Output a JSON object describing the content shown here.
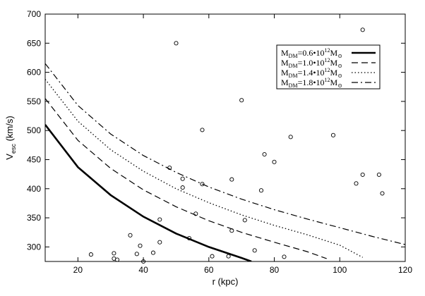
{
  "chart_data": {
    "type": "line",
    "xlabel": "r (kpc)",
    "ylabel": {
      "main": "V",
      "sub": "esc",
      "rest": " (km/s)"
    },
    "xlim": [
      10,
      120
    ],
    "ylim": [
      275,
      700
    ],
    "xticks": [
      20,
      40,
      60,
      80,
      100,
      120
    ],
    "yticks": [
      300,
      350,
      400,
      450,
      500,
      550,
      600,
      650,
      700
    ],
    "grid": false,
    "legend_position": "top-right",
    "series": [
      {
        "name": "M_DM=0.6•10^12 M_⊙",
        "legend": {
          "main": "M",
          "sub1": "DM",
          "mid": "=0.6•10",
          "sup": "12",
          "end": "M",
          "sub2": "⊙"
        },
        "style": "solid-thick",
        "x": [
          10,
          20,
          30,
          40,
          50,
          60,
          70,
          73
        ],
        "y": [
          510,
          437,
          389,
          352,
          323,
          300,
          281,
          275
        ]
      },
      {
        "name": "M_DM=1.0•10^12 M_⊙",
        "legend": {
          "main": "M",
          "sub1": "DM",
          "mid": "=1.0•10",
          "sup": "12",
          "end": "M",
          "sub2": "⊙"
        },
        "style": "dashed",
        "x": [
          10,
          20,
          30,
          40,
          50,
          60,
          70,
          80,
          90,
          96
        ],
        "y": [
          555,
          483,
          435,
          398,
          369,
          345,
          325,
          308,
          292,
          280
        ]
      },
      {
        "name": "M_DM=1.4•10^12 M_⊙",
        "legend": {
          "main": "M",
          "sub1": "DM",
          "mid": "=1.4•10",
          "sup": "12",
          "end": "M",
          "sub2": "⊙"
        },
        "style": "dotted",
        "x": [
          10,
          20,
          30,
          40,
          50,
          60,
          70,
          80,
          90,
          100,
          107
        ],
        "y": [
          588,
          516,
          467,
          430,
          400,
          376,
          355,
          337,
          321,
          303,
          282
        ]
      },
      {
        "name": "M_DM=1.8•10^12 M_⊙",
        "legend": {
          "main": "M",
          "sub1": "DM",
          "mid": "=1.8•10",
          "sup": "12",
          "end": "M",
          "sub2": "⊙"
        },
        "style": "dashdot",
        "x": [
          10,
          20,
          30,
          40,
          50,
          60,
          70,
          80,
          90,
          100,
          110,
          120
        ],
        "y": [
          615,
          543,
          494,
          457,
          428,
          403,
          382,
          364,
          348,
          333,
          318,
          304
        ]
      }
    ],
    "scatter": {
      "name": "data points",
      "x": [
        24,
        31,
        31,
        32,
        36,
        38,
        39,
        40,
        43,
        45,
        45,
        48,
        50,
        52,
        52,
        54,
        56,
        58,
        58,
        61,
        66,
        67,
        67,
        70,
        71,
        74,
        76,
        77,
        80,
        83,
        85,
        98,
        105,
        107,
        107,
        112,
        113
      ],
      "y": [
        287,
        289,
        280,
        278,
        320,
        288,
        302,
        275,
        290,
        308,
        347,
        436,
        650,
        402,
        417,
        315,
        357,
        501,
        408,
        284,
        284,
        416,
        328,
        552,
        346,
        294,
        397,
        459,
        446,
        283,
        489,
        492,
        409,
        424,
        673,
        424,
        392
      ]
    }
  }
}
